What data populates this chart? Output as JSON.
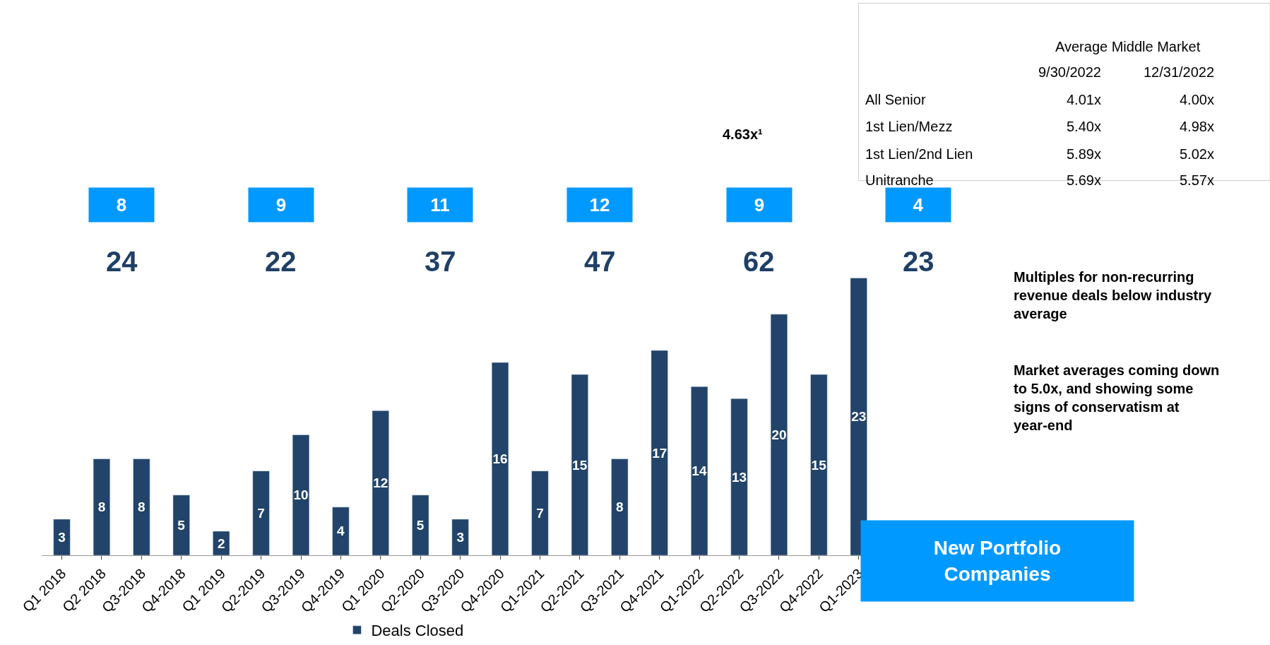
{
  "chart_data": {
    "type": "bar",
    "categories": [
      "Q1 2018",
      "Q2 2018",
      "Q3-2018",
      "Q4-2018",
      "Q1 2019",
      "Q2-2019",
      "Q3-2019",
      "Q4-2019",
      "Q1 2020",
      "Q2-2020",
      "Q3-2020",
      "Q4-2020",
      "Q1-2021",
      "Q2-2021",
      "Q3-2021",
      "Q4-2021",
      "Q1-2022",
      "Q2-2022",
      "Q3-2022",
      "Q4-2022",
      "Q1-2023"
    ],
    "series": [
      {
        "name": "Deals Closed",
        "color": "#22446a",
        "values": [
          3,
          8,
          8,
          5,
          2,
          7,
          10,
          4,
          12,
          5,
          3,
          16,
          7,
          15,
          8,
          17,
          14,
          13,
          20,
          15,
          23
        ]
      }
    ],
    "tick_labels": "x",
    "data_labels": true,
    "legend": "bottom",
    "annotations": [
      "24",
      "22",
      "37",
      "47",
      "62",
      "23",
      "8",
      "9",
      "11",
      "12",
      "9",
      "4",
      "4.63x¹",
      "Average Middle Market",
      "9/30/2022",
      "12/31/2022",
      "All Senior",
      "4.01x",
      "4.00x",
      "1st Lien/Mezz",
      "5.40x",
      "4.98x",
      "1st Lien/2nd Lien",
      "5.89x",
      "5.02x",
      "Unitranche",
      "5.69x",
      "5.57x",
      "Multiples for non-recurring revenue deals below industry average",
      "Market averages coming down to 5.0x, and showing some signs of conservatism at year-end",
      "New Portfolio Companies"
    ]
  }
}
